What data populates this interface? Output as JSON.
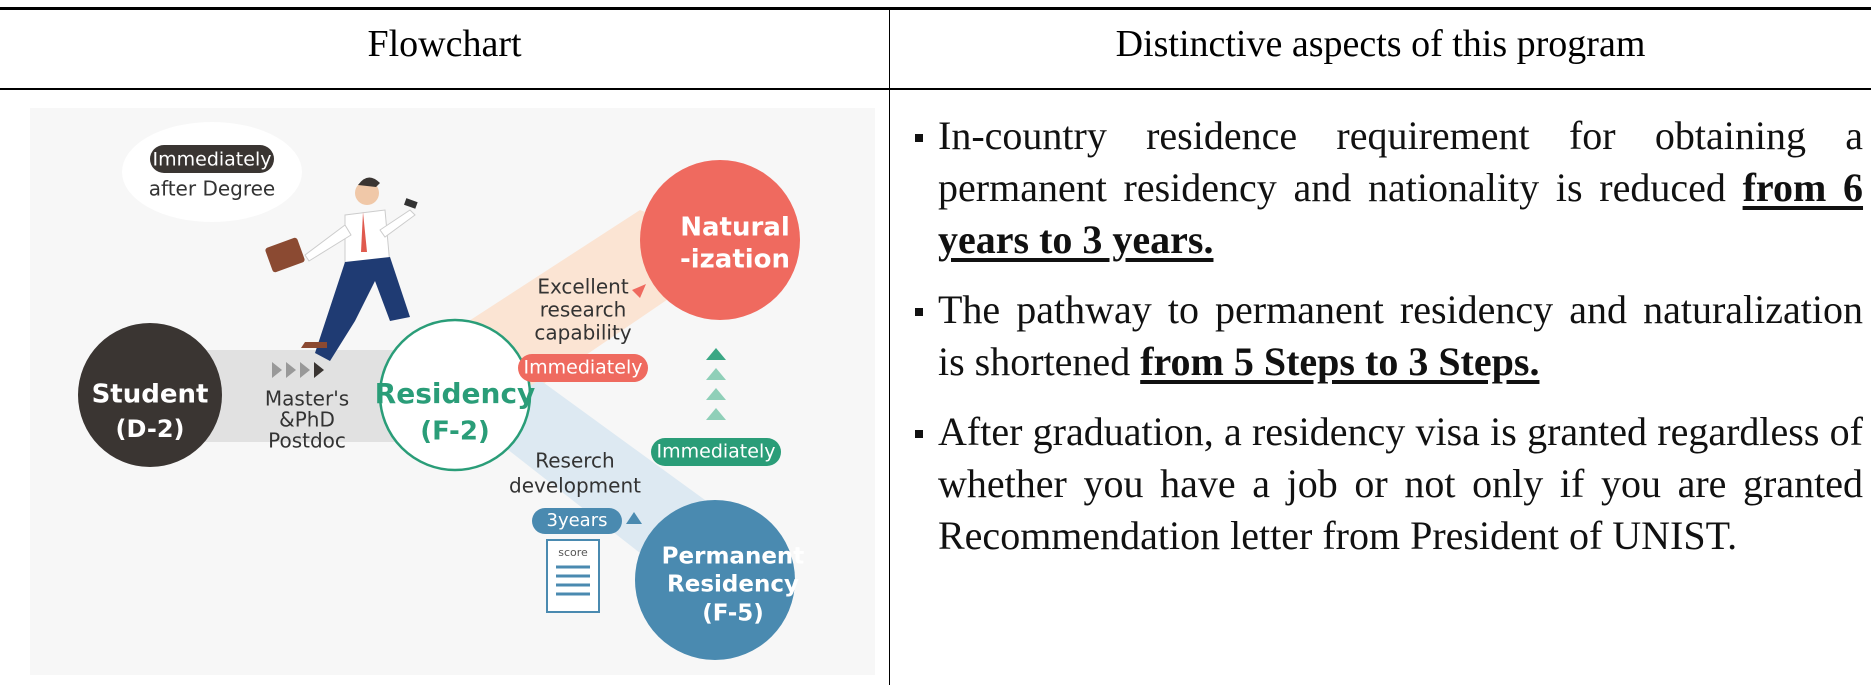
{
  "table": {
    "headers": [
      "Flowchart",
      "Distinctive aspects of this program"
    ],
    "flowchart": {
      "callout": [
        "Immediately",
        "after Degree"
      ],
      "student": [
        "Student",
        "(D-2)"
      ],
      "study": [
        "Master's",
        "&PhD",
        "Postdoc"
      ],
      "residency": [
        "Residency",
        "(F-2)"
      ],
      "excellent": [
        "Excellent",
        "research",
        "capability"
      ],
      "immediately_red": "Immediately",
      "naturalization": [
        "Natural",
        "-ization"
      ],
      "immediately_green": "Immediately",
      "research": [
        "Reserch",
        "development"
      ],
      "years": "3years",
      "score": "score",
      "permanent": [
        "Permanent",
        "Residency",
        "(F-5)"
      ]
    },
    "bullets": [
      {
        "text": "In-country residence requirement for obtaining a permanent residency and nationality is reduced",
        "emphasis": "from 6 years to 3 years."
      },
      {
        "text": "The pathway to permanent residency and naturalization is shortened",
        "emphasis": "from 5 Steps to 3 Steps."
      },
      {
        "text": "After graduation, a residency visa is granted regardless of whether you have a job or not only if you are granted Recommendation letter from President of UNIST."
      }
    ]
  }
}
